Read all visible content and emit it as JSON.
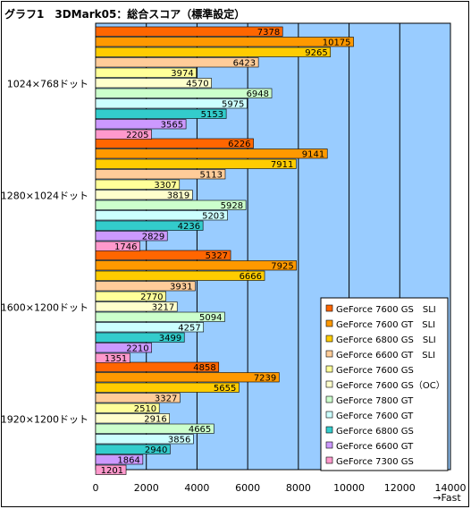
{
  "chart_data": {
    "type": "bar",
    "orientation": "horizontal",
    "title": "グラフ1　3DMark05：総合スコア（標準設定）",
    "xlabel": "→Fast",
    "ylabel": "",
    "xlim": [
      0,
      14000
    ],
    "xticks": [
      0,
      2000,
      4000,
      6000,
      8000,
      10000,
      12000,
      14000
    ],
    "grid": true,
    "legend_position": "bottom-right",
    "plot_background": "#99CCFF",
    "categories": [
      "1024×768ドット",
      "1280×1024ドット",
      "1600×1200ドット",
      "1920×1200ドット"
    ],
    "series": [
      {
        "name": "GeForce 7600 GS　SLI",
        "color": "#FF6600",
        "values": [
          7378,
          6226,
          5327,
          4858
        ]
      },
      {
        "name": "GeForce 7600 GT　SLI",
        "color": "#FF9900",
        "values": [
          10175,
          9141,
          7925,
          7239
        ]
      },
      {
        "name": "GeForce 6800 GS　SLI",
        "color": "#FFCC00",
        "values": [
          9265,
          7911,
          6666,
          5655
        ]
      },
      {
        "name": "GeForce 6600 GT　SLI",
        "color": "#FFCC99",
        "values": [
          6423,
          5113,
          3931,
          3327
        ]
      },
      {
        "name": "GeForce 7600 GS",
        "color": "#FFFF99",
        "values": [
          3974,
          3307,
          2770,
          2510
        ]
      },
      {
        "name": "GeForce 7600 GS（OC）",
        "color": "#FFFFCC",
        "values": [
          4570,
          3819,
          3217,
          2916
        ]
      },
      {
        "name": "GeForce 7800 GT",
        "color": "#CCFFCC",
        "values": [
          6948,
          5928,
          5094,
          4665
        ]
      },
      {
        "name": "GeForce 7600 GT",
        "color": "#CCFFFF",
        "values": [
          5975,
          5203,
          4257,
          3856
        ]
      },
      {
        "name": "GeForce 6800 GS",
        "color": "#33CCCC",
        "values": [
          5153,
          4236,
          3499,
          2940
        ]
      },
      {
        "name": "GeForce 6600 GT",
        "color": "#CC99FF",
        "values": [
          3565,
          2829,
          2210,
          1864
        ]
      },
      {
        "name": "GeForce 7300 GS",
        "color": "#FF99CC",
        "values": [
          2205,
          1746,
          1351,
          1201
        ]
      }
    ]
  }
}
